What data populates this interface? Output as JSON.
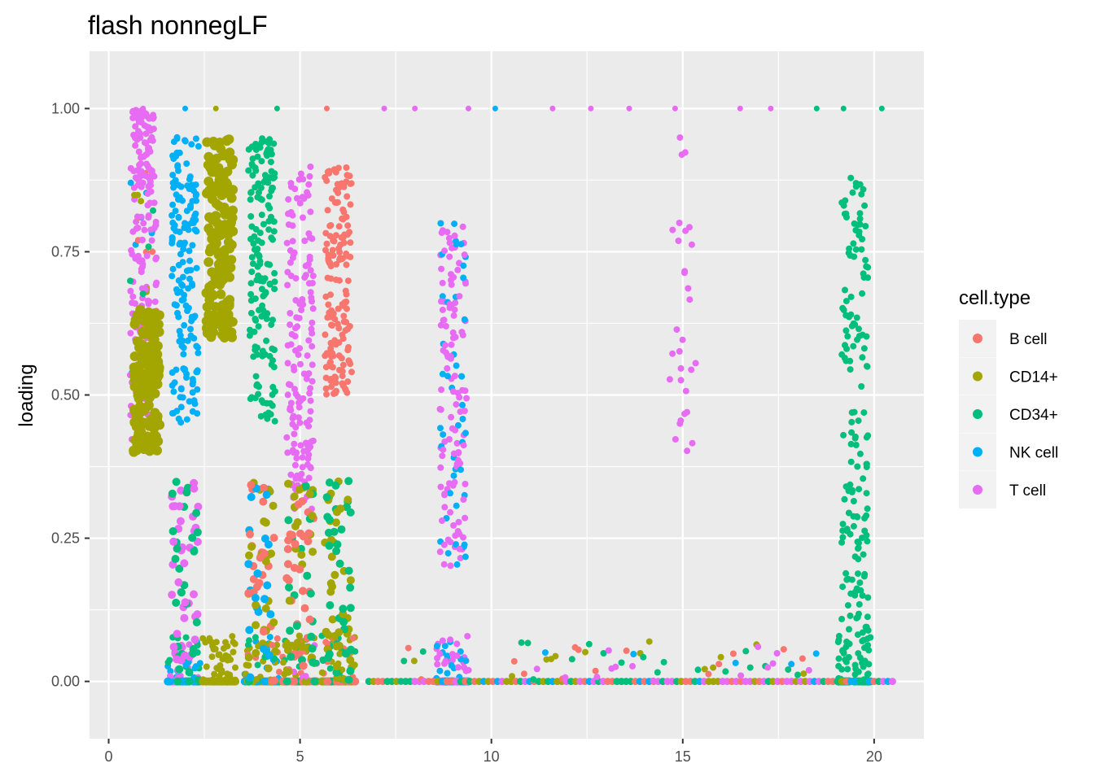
{
  "chart_data": {
    "type": "scatter",
    "title": "flash nonnegLF",
    "xlabel": "",
    "ylabel": "loading",
    "xlim": [
      -0.5,
      21.3
    ],
    "ylim": [
      -0.1,
      1.1
    ],
    "x_ticks": [
      0,
      5,
      10,
      15,
      20
    ],
    "x_tick_labels": [
      "0",
      "5",
      "10",
      "15",
      "20"
    ],
    "y_ticks": [
      0,
      0.25,
      0.5,
      0.75,
      1.0
    ],
    "y_tick_labels": [
      "0.00",
      "0.25",
      "0.50",
      "0.75",
      "1.00"
    ],
    "grid": true,
    "legend": {
      "title": "cell.type",
      "position": "right",
      "entries": [
        {
          "name": "B cell",
          "color": "#F8766D"
        },
        {
          "name": "CD14+",
          "color": "#A3A500"
        },
        {
          "name": "CD34+",
          "color": "#00BF7D"
        },
        {
          "name": "NK cell",
          "color": "#00B0F6"
        },
        {
          "name": "T cell",
          "color": "#E76BF3"
        }
      ]
    },
    "groups": [
      {
        "x_center": 0.9,
        "dominant": "T cell",
        "high_band": [
          0.85,
          1.0
        ],
        "mid_band": [
          0.4,
          0.9
        ],
        "mixed": [
          "NK cell",
          "CD34+",
          "B cell",
          "CD14+"
        ]
      },
      {
        "x_center": 1.0,
        "dominant": "CD14+",
        "mid_band": [
          0.4,
          0.65
        ]
      },
      {
        "x_center": 2.0,
        "dominant": "NK cell",
        "mid_band": [
          0.45,
          0.95
        ],
        "zero_cluster": true,
        "lower_mixed": [
          "T cell",
          "CD34+"
        ]
      },
      {
        "x_center": 2.9,
        "dominant": "CD14+",
        "mid_band": [
          0.6,
          0.95
        ],
        "zero_cluster": true
      },
      {
        "x_center": 4.0,
        "dominant": "CD34+",
        "mid_band": [
          0.45,
          0.95
        ],
        "zero_cluster": true,
        "lower_mixed": [
          "B cell",
          "NK cell",
          "CD14+"
        ]
      },
      {
        "x_center": 5.0,
        "dominant": "T cell",
        "mid_band": [
          0.3,
          0.9
        ],
        "zero_cluster": true,
        "lower_mixed": [
          "B cell",
          "CD14+",
          "CD34+"
        ]
      },
      {
        "x_center": 6.0,
        "dominant": "B cell",
        "mid_band": [
          0.5,
          0.9
        ],
        "zero_cluster": true,
        "lower_mixed": [
          "CD14+",
          "CD34+"
        ]
      },
      {
        "x_center": 9.0,
        "dominant": "T cell",
        "mid_band": [
          0.2,
          0.8
        ],
        "mixed": [
          "NK cell"
        ],
        "zero_cluster": true
      },
      {
        "x_center": 15.0,
        "dominant": "T cell",
        "sparse": true,
        "mid_band": [
          0.4,
          0.95
        ]
      },
      {
        "x_center": 19.5,
        "dominant": "CD34+",
        "mid_band": [
          0.05,
          0.88
        ],
        "zero_cluster": true
      }
    ],
    "points_at_one": [
      {
        "x": 0.9,
        "series": "T cell"
      },
      {
        "x": 2.0,
        "series": "NK cell"
      },
      {
        "x": 2.8,
        "series": "CD14+"
      },
      {
        "x": 4.4,
        "series": "CD34+"
      },
      {
        "x": 5.7,
        "series": "B cell"
      },
      {
        "x": 7.2,
        "series": "T cell"
      },
      {
        "x": 8.0,
        "series": "T cell"
      },
      {
        "x": 9.4,
        "series": "T cell"
      },
      {
        "x": 10.1,
        "series": "NK cell"
      },
      {
        "x": 11.6,
        "series": "T cell"
      },
      {
        "x": 12.6,
        "series": "T cell"
      },
      {
        "x": 13.6,
        "series": "T cell"
      },
      {
        "x": 14.8,
        "series": "T cell"
      },
      {
        "x": 16.5,
        "series": "T cell"
      },
      {
        "x": 17.3,
        "series": "T cell"
      },
      {
        "x": 18.5,
        "series": "CD34+"
      },
      {
        "x": 19.2,
        "series": "CD34+"
      },
      {
        "x": 20.2,
        "series": "CD34+"
      }
    ]
  }
}
